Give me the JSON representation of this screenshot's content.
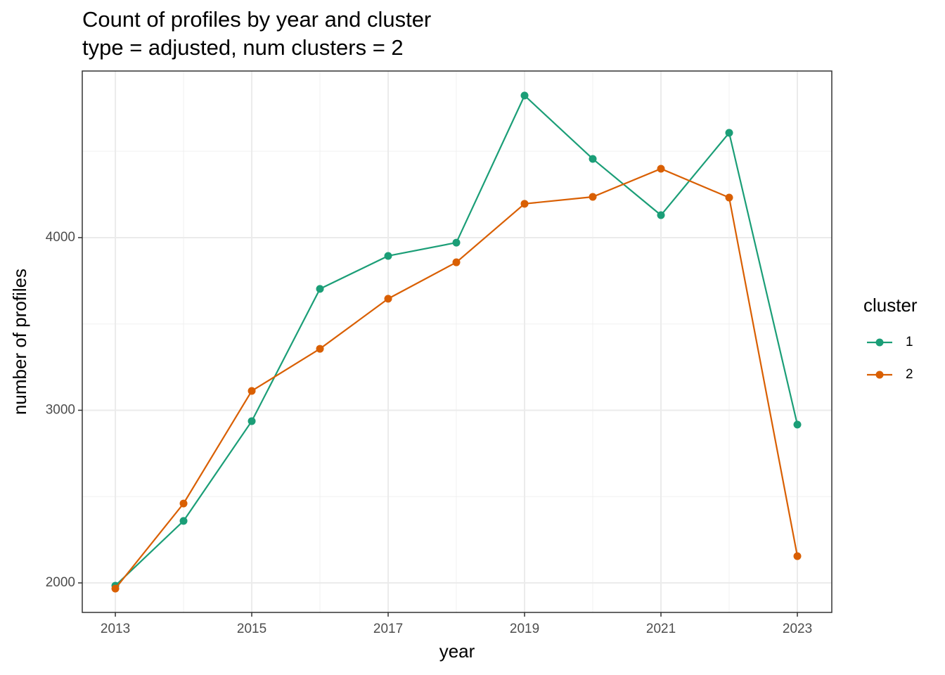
{
  "chart_data": {
    "type": "line",
    "title": "Count of profiles by year and cluster",
    "subtitle": "type = adjusted, num clusters = 2",
    "xlabel": "year",
    "ylabel": "number of profiles",
    "legend_title": "cluster",
    "legend_position": "right",
    "x": [
      2013,
      2014,
      2015,
      2016,
      2017,
      2018,
      2019,
      2020,
      2021,
      2022,
      2023
    ],
    "series": [
      {
        "name": "1",
        "color": "#1b9e77",
        "values": [
          1984,
          2359,
          2937,
          3703,
          3894,
          3971,
          4823,
          4456,
          4130,
          4607,
          2917
        ]
      },
      {
        "name": "2",
        "color": "#d95f02",
        "values": [
          1967,
          2460,
          3112,
          3356,
          3646,
          3857,
          4196,
          4236,
          4399,
          4232,
          2155
        ]
      }
    ],
    "xlim": [
      2012.515,
      2023.505
    ],
    "xticks": [
      2013,
      2015,
      2017,
      2019,
      2021,
      2023
    ],
    "ylim": [
      1829,
      4965
    ],
    "yticks": [
      2000,
      3000,
      4000
    ],
    "grid": true
  }
}
